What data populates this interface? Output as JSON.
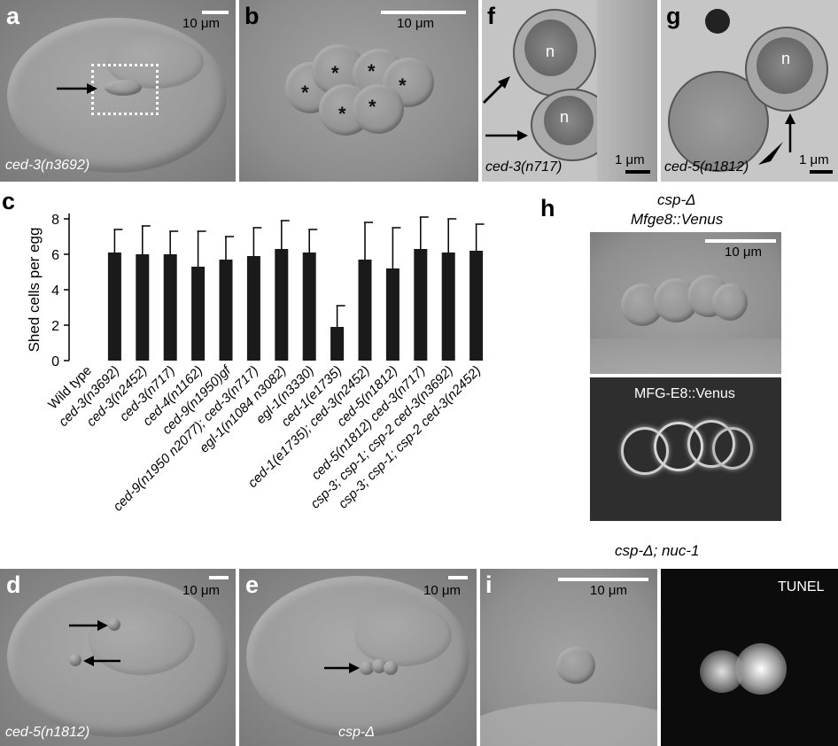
{
  "panels": {
    "a": {
      "label": "a",
      "genotype": "ced-3(n3692)",
      "scale": "10 μm"
    },
    "b": {
      "label": "b",
      "scale": "10 μm",
      "marker": "*"
    },
    "f": {
      "label": "f",
      "genotype": "ced-3(n717)",
      "nucleus": "n",
      "scale": "1 μm"
    },
    "g": {
      "label": "g",
      "genotype": "ced-5(n1812)",
      "nucleus": "n",
      "scale": "1 μm"
    },
    "c": {
      "label": "c"
    },
    "h": {
      "label": "h",
      "title_line1": "csp-Δ",
      "title_line2": "Mfge8::Venus",
      "scale": "10 μm",
      "fluor_label": "MFG-E8::Venus"
    },
    "d": {
      "label": "d",
      "genotype": "ced-5(n1812)",
      "scale": "10 μm"
    },
    "e": {
      "label": "e",
      "genotype": "csp-Δ",
      "scale": "10 μm"
    },
    "i": {
      "label": "i",
      "title": "csp-Δ; nuc-1",
      "scale": "10 μm",
      "fluor_label": "TUNEL"
    }
  },
  "chart_data": {
    "type": "bar",
    "ylabel": "Shed cells per egg",
    "ylim": [
      0,
      8
    ],
    "yticks": [
      0,
      2,
      4,
      6,
      8
    ],
    "categories": [
      "Wild type",
      "ced-3(n3692)",
      "ced-3(n2452)",
      "ced-3(n717)",
      "ced-4(n1162)",
      "ced-9(n1950)gf",
      "ced-9(n1950 n2077); ced-3(n717)",
      "egl-1(n1084 n3082)",
      "egl-1(n3330)",
      "ced-1(e1735)",
      "ced-1(e1735); ced-3(n2452)",
      "ced-5(n1812)",
      "ced-5(n1812) ced-3(n717)",
      "csp-3; csp-1; csp-2 ced-3(n3692)",
      "csp-3; csp-1; csp-2 ced-3(n2452)"
    ],
    "values": [
      0,
      6.1,
      6.0,
      6.0,
      5.3,
      5.7,
      5.9,
      6.3,
      6.1,
      1.9,
      5.7,
      5.2,
      6.3,
      6.1,
      6.2
    ],
    "errors": [
      0,
      1.3,
      1.6,
      1.3,
      2.0,
      1.3,
      1.6,
      1.6,
      1.3,
      1.2,
      2.1,
      2.3,
      1.8,
      1.9,
      1.5
    ],
    "colors": {
      "bar": "#1a1a1a"
    }
  }
}
